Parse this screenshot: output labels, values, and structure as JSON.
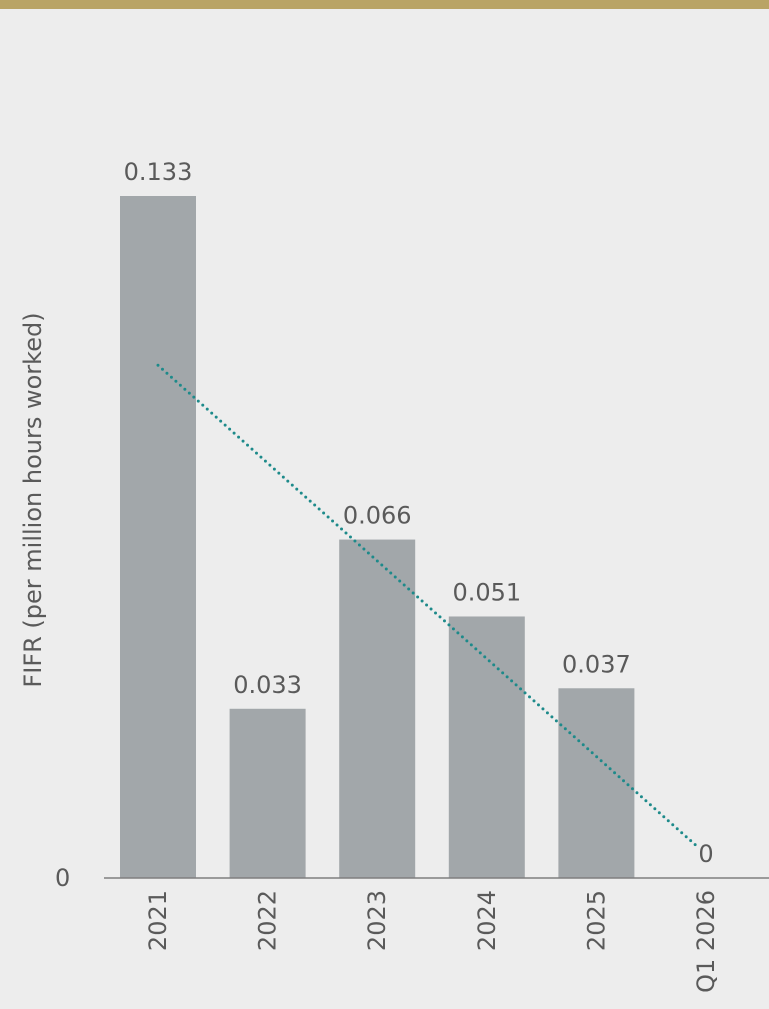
{
  "colors": {
    "top_bar": "#b9a466",
    "background": "#ededed",
    "bar": "#a2a7aa",
    "trend": "#1d8a8a",
    "axis": "#7f7f7f",
    "text": "#5a5a5a"
  },
  "chart_data": {
    "type": "bar",
    "title": "",
    "xlabel": "",
    "ylabel": "FIFR (per million hours worked)",
    "categories": [
      "2021",
      "2022",
      "2023",
      "2024",
      "2025",
      "Q1 2026"
    ],
    "values": [
      0.133,
      0.033,
      0.066,
      0.051,
      0.037,
      0
    ],
    "data_labels": [
      "0.133",
      "0.033",
      "0.066",
      "0.051",
      "0.037",
      "0"
    ],
    "ylim": [
      0,
      0.133
    ],
    "yticks": [
      "0"
    ],
    "grid": false,
    "legend": "none",
    "trendline": {
      "type": "linear",
      "style": "dotted",
      "start": 0.1,
      "end": 0.006
    }
  }
}
